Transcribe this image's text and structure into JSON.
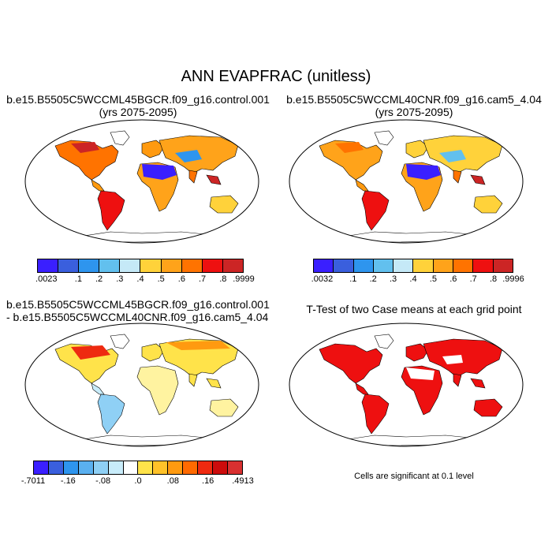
{
  "title": "ANN EVAPFRAC (unitless)",
  "panels": [
    {
      "id": "case1",
      "title_line1": "b.e15.B5505C5WCCML45BGCR.f09_g16.control.001",
      "title_line2": "(yrs 2075-2095)",
      "colorbar": {
        "colors": [
          "#3a1fff",
          "#3a5fdd",
          "#2e95ee",
          "#62c0ee",
          "#c5e9f7",
          "#ffd23a",
          "#ffa31a",
          "#ff7300",
          "#ee1010",
          "#cc2525"
        ],
        "labels": [
          ".0023",
          ".1",
          ".2",
          ".3",
          ".4",
          ".5",
          ".6",
          ".7",
          ".8",
          ".9999"
        ]
      }
    },
    {
      "id": "case2",
      "title_line1": "b.e15.B5505C5WCCML40CNR.f09_g16.cam5_4.04",
      "title_line2": "(yrs 2075-2095)",
      "colorbar": {
        "colors": [
          "#3a1fff",
          "#3a5fdd",
          "#2e95ee",
          "#62c0ee",
          "#c5e9f7",
          "#ffd23a",
          "#ffa31a",
          "#ff7300",
          "#ee1010",
          "#cc2525"
        ],
        "labels": [
          ".0032",
          ".1",
          ".2",
          ".3",
          ".4",
          ".5",
          ".6",
          ".7",
          ".8",
          ".9996"
        ]
      }
    },
    {
      "id": "diff",
      "title_line1": "b.e15.B5505C5WCCML45BGCR.f09_g16.control.001",
      "title_line2": "- b.e15.B5505C5WCCML40CNR.f09_g16.cam5_4.04",
      "colorbar": {
        "colors": [
          "#3a1fff",
          "#3a5fdd",
          "#2e95ee",
          "#5ab0f0",
          "#8fd0f5",
          "#c8ecfa",
          "#ffffff",
          "#ffe34a",
          "#ffc229",
          "#ff9a10",
          "#ff6a00",
          "#ee2a10",
          "#cc0c0c",
          "#d83030"
        ],
        "labels": [
          "-.7011",
          "-.16",
          "-.08",
          ".0",
          ".08",
          ".16",
          ".4913"
        ]
      }
    },
    {
      "id": "ttest",
      "title_line1": "T-Test of two Case means at each grid point",
      "note": "Cells are significant at 0.1 level"
    }
  ]
}
